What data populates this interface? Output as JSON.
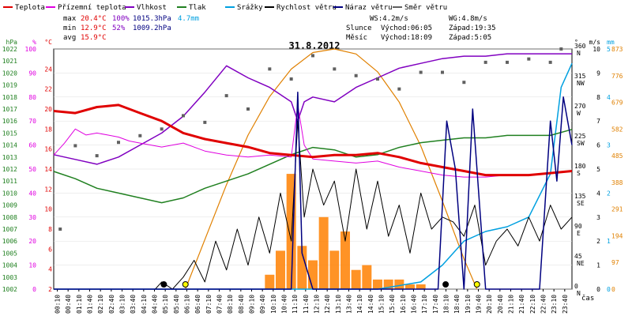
{
  "legend": [
    {
      "label": "Teplota",
      "color": "#e00000"
    },
    {
      "label": "Přízemní teplota",
      "color": "#e000e0"
    },
    {
      "label": "Vlhkost",
      "color": "#8000c0"
    },
    {
      "label": "Tlak",
      "color": "#208020"
    },
    {
      "label": "Srážky",
      "color": "#00a0e0"
    },
    {
      "label": "Rychlost větru",
      "color": "#000000"
    },
    {
      "label": "Náraz větru",
      "color": "#000080"
    },
    {
      "label": "Směr větru",
      "color": "#606060"
    }
  ],
  "stats": {
    "max_label": "max",
    "max_temp": "20.4°C",
    "max_hum": "100%",
    "max_press": "1015.3hPa",
    "rain_total": "4.7mm",
    "min_label": "min",
    "min_temp": "12.9°C",
    "min_hum": "52%",
    "min_press": "1009.2hPa",
    "avg_label": "avg",
    "avg_temp": "15.9°C",
    "ws": "WS:4.2m/s",
    "wg": "WG:4.8m/s",
    "sun_label": "Slunce",
    "sunrise": "Východ:06:05",
    "sunset": "Západ:19:35",
    "moon_label": "Měsíc",
    "moonrise": "Východ:18:09",
    "moonset": "Západ:5:05"
  },
  "chart_data": {
    "type": "line",
    "title": "31.8.2012",
    "xlabel": "čas",
    "x_ticks": [
      "00:10",
      "00:40",
      "01:10",
      "01:40",
      "02:10",
      "02:40",
      "03:10",
      "03:40",
      "04:10",
      "04:40",
      "05:10",
      "05:40",
      "06:10",
      "06:40",
      "07:10",
      "07:40",
      "08:10",
      "08:40",
      "09:10",
      "09:40",
      "10:10",
      "10:40",
      "11:10",
      "11:40",
      "12:10",
      "12:40",
      "13:10",
      "13:40",
      "14:10",
      "14:40",
      "15:10",
      "15:40",
      "16:10",
      "16:40",
      "17:10",
      "17:40",
      "18:10",
      "18:40",
      "19:10",
      "19:40",
      "20:10",
      "20:40",
      "21:10",
      "21:40",
      "22:10",
      "22:40",
      "23:10",
      "23:40"
    ],
    "axes": {
      "pressure": {
        "unit": "hPa",
        "range": [
          1002,
          1022
        ],
        "color": "#208020",
        "ticks": [
          "1002",
          "1003",
          "1004",
          "1005",
          "1006",
          "1007",
          "1008",
          "1009",
          "1010",
          "1011",
          "1012",
          "1013",
          "1014",
          "1015",
          "1016",
          "1017",
          "1018",
          "1019",
          "1020",
          "1021",
          "1022"
        ]
      },
      "humidity": {
        "unit": "%",
        "range": [
          0,
          100
        ],
        "color": "#e000e0",
        "ticks": [
          "0",
          "10",
          "20",
          "30",
          "40",
          "50",
          "60",
          "70",
          "80",
          "90",
          "100"
        ]
      },
      "temperature": {
        "unit": "°C",
        "range": [
          2,
          26
        ],
        "color": "#e00000",
        "ticks": [
          "2",
          "4",
          "6",
          "8",
          "10",
          "12",
          "14",
          "16",
          "18",
          "20",
          "22",
          "24"
        ]
      },
      "wind_dir": {
        "unit": "°",
        "range": [
          0,
          360
        ],
        "ticks": [
          {
            "deg": "0",
            "dir": "N"
          },
          {
            "deg": "45",
            "dir": "NE"
          },
          {
            "deg": "90",
            "dir": "E"
          },
          {
            "deg": "135",
            "dir": "SE"
          },
          {
            "deg": "180",
            "dir": "S"
          },
          {
            "deg": "225",
            "dir": "SW"
          },
          {
            "deg": "270",
            "dir": "W"
          },
          {
            "deg": "315",
            "dir": "NW"
          },
          {
            "deg": "360",
            "dir": "N"
          }
        ]
      },
      "wind_speed": {
        "unit": "m/s",
        "range": [
          0,
          10
        ],
        "ticks": [
          "0",
          "1",
          "2",
          "3",
          "4",
          "5",
          "6",
          "7",
          "8",
          "9",
          "10"
        ]
      },
      "rain": {
        "unit": "mm",
        "range": [
          0,
          5
        ],
        "color": "#00a0e0",
        "ticks": [
          "0",
          "1",
          "2",
          "3",
          "4",
          "5"
        ]
      },
      "solar": {
        "range": [
          0,
          873
        ],
        "color": "#e08000",
        "ticks": [
          "0",
          "97",
          "194",
          "291",
          "388",
          "485",
          "582",
          "679",
          "776",
          "873"
        ]
      }
    },
    "series": [
      {
        "name": "Teplota",
        "axis": "temperature",
        "x": [
          0,
          1,
          2,
          3,
          4,
          5,
          6,
          7,
          8,
          9,
          10,
          11,
          12,
          13,
          14,
          15,
          16,
          17,
          18,
          19,
          20,
          21,
          22,
          23,
          24
        ],
        "values": [
          19.8,
          19.6,
          20.2,
          20.4,
          19.6,
          18.8,
          17.6,
          17.0,
          16.6,
          16.2,
          15.6,
          15.4,
          15.2,
          15.4,
          15.4,
          15.6,
          15.2,
          14.6,
          14.2,
          13.8,
          13.4,
          13.4,
          13.4,
          13.6,
          13.8
        ]
      },
      {
        "name": "Přízemní teplota",
        "axis": "temperature",
        "x": [
          0,
          0.5,
          1,
          1.5,
          2,
          2.5,
          3,
          3.5,
          4,
          5,
          6,
          7,
          8,
          9,
          10,
          11,
          11.3,
          11.6,
          12,
          13,
          14,
          15,
          16,
          17,
          18,
          19,
          20,
          21,
          22,
          23,
          24
        ],
        "values": [
          15.4,
          16.6,
          18.0,
          17.4,
          17.6,
          17.4,
          17.2,
          16.8,
          16.6,
          16.2,
          16.6,
          15.8,
          15.4,
          15.2,
          15.4,
          15.2,
          20.4,
          16.4,
          15.0,
          14.8,
          14.6,
          14.8,
          14.2,
          13.8,
          13.4,
          13.2,
          13.2,
          13.4,
          13.4,
          13.6,
          13.8
        ]
      },
      {
        "name": "Vlhkost",
        "axis": "humidity",
        "x": [
          0,
          1,
          2,
          3,
          4,
          5,
          6,
          7,
          8,
          9,
          9.5,
          10,
          11,
          11.3,
          11.6,
          12,
          13,
          14,
          15,
          16,
          17,
          18,
          19,
          20,
          21,
          22,
          23,
          24
        ],
        "values": [
          56,
          54,
          52,
          55,
          60,
          65,
          72,
          82,
          93,
          88,
          86,
          84,
          78,
          70,
          78,
          80,
          78,
          84,
          88,
          92,
          94,
          96,
          97,
          97,
          98,
          98,
          98,
          98
        ]
      },
      {
        "name": "Tlak",
        "axis": "pressure",
        "x": [
          0,
          1,
          2,
          3,
          4,
          5,
          6,
          7,
          8,
          9,
          10,
          11,
          12,
          13,
          14,
          15,
          16,
          17,
          18,
          19,
          20,
          21,
          22,
          23,
          24
        ],
        "values": [
          1011.8,
          1011.2,
          1010.4,
          1010.0,
          1009.6,
          1009.2,
          1009.6,
          1010.4,
          1011.0,
          1011.6,
          1012.4,
          1013.2,
          1013.8,
          1013.6,
          1013.0,
          1013.2,
          1013.8,
          1014.2,
          1014.4,
          1014.6,
          1014.6,
          1014.8,
          1014.8,
          1014.8,
          1015.3
        ]
      },
      {
        "name": "Srážky",
        "axis": "rain",
        "x": [
          0,
          10,
          13,
          15,
          17,
          18,
          19,
          20,
          21,
          22,
          23,
          23.5,
          24
        ],
        "values": [
          0,
          0,
          0,
          0,
          0.15,
          0.5,
          1.0,
          1.2,
          1.3,
          1.5,
          2.4,
          4.2,
          4.7
        ]
      },
      {
        "name": "Rychlost větru",
        "axis": "wind_speed",
        "x": [
          0,
          4.7,
          5.0,
          5.5,
          6,
          6.5,
          7,
          7.5,
          8,
          8.5,
          9,
          9.5,
          10,
          10.5,
          11,
          11.3,
          11.6,
          12,
          12.5,
          13,
          13.5,
          14,
          14.5,
          15,
          15.5,
          16,
          16.5,
          17,
          17.5,
          18,
          18.5,
          19,
          19.5,
          20,
          20.5,
          21,
          21.5,
          22,
          22.5,
          23,
          23.5,
          24
        ],
        "values": [
          0,
          0,
          0.3,
          0,
          0.5,
          1.2,
          0.3,
          2,
          0.8,
          2.5,
          1.0,
          3,
          1.5,
          4,
          2,
          7,
          3,
          5,
          3.5,
          4.5,
          2,
          5,
          2.5,
          4.5,
          2.2,
          3.5,
          1.5,
          4,
          2.5,
          3,
          2.8,
          2.2,
          3.5,
          1.0,
          2,
          2.5,
          1.8,
          3,
          2.0,
          3.5,
          2.5,
          3
        ]
      },
      {
        "name": "Náraz větru",
        "axis": "wind_speed",
        "x": [
          0,
          11.0,
          11.3,
          11.5,
          12,
          17.8,
          18.2,
          18.6,
          19,
          19.4,
          20,
          22.5,
          23,
          23.3,
          23.6,
          24
        ],
        "values": [
          0,
          0,
          8.2,
          1.5,
          0,
          0,
          7.0,
          5.0,
          0,
          7.5,
          0,
          0,
          7.0,
          4.5,
          8.0,
          6.0
        ]
      },
      {
        "name": "Směr větru",
        "axis": "wind_dir",
        "x": [
          0.3,
          1,
          2,
          3,
          4,
          5,
          6,
          7,
          8,
          9,
          10,
          11,
          12,
          13,
          14,
          15,
          16,
          17,
          18,
          19,
          20,
          21,
          22,
          23,
          23.5
        ],
        "values": [
          90,
          215,
          200,
          220,
          230,
          240,
          260,
          250,
          290,
          270,
          330,
          315,
          350,
          330,
          320,
          315,
          300,
          325,
          325,
          310,
          340,
          340,
          345,
          340,
          360
        ]
      },
      {
        "name": "Solar",
        "axis": "solar",
        "x": [
          6.1,
          7,
          8,
          9,
          10,
          11,
          12,
          13,
          14,
          15,
          16,
          17,
          18,
          19,
          19.6
        ],
        "values": [
          0,
          180,
          380,
          560,
          700,
          800,
          860,
          873,
          855,
          790,
          680,
          520,
          320,
          110,
          0
        ]
      }
    ],
    "rain_bars": {
      "x": [
        10,
        10.5,
        11,
        11.5,
        12,
        12.5,
        13,
        13.5,
        14,
        14.5,
        15,
        15.5,
        16,
        16.5,
        17
      ],
      "values": [
        0.3,
        0.8,
        2.4,
        0.9,
        0.6,
        1.5,
        0.8,
        1.2,
        0.4,
        0.5,
        0.2,
        0.2,
        0.2,
        0.1,
        0.1
      ]
    }
  }
}
